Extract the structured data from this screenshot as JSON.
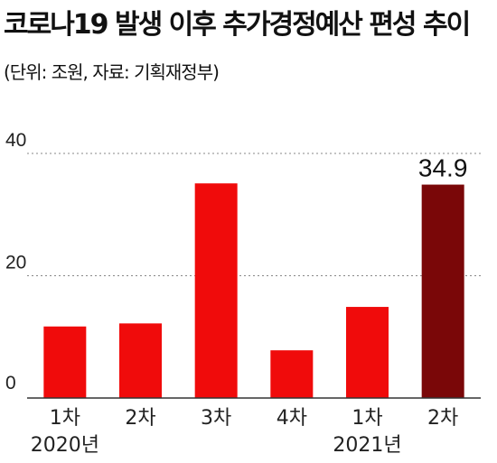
{
  "title": "코로나19 발생 이후 추가경정예산 편성 추이",
  "subtitle": "(단위: 조원, 자료: 기획재정부)",
  "chart_data": {
    "type": "bar",
    "categories": [
      "1차",
      "2차",
      "3차",
      "4차",
      "1차",
      "2차"
    ],
    "groups": [
      {
        "label": "2020년",
        "from": 0,
        "to": 3
      },
      {
        "label": "2021년",
        "from": 4,
        "to": 5
      }
    ],
    "values": [
      11.7,
      12.2,
      35.1,
      7.8,
      14.9,
      34.9
    ],
    "yticks": [
      0,
      20,
      40
    ],
    "ylim": [
      0,
      40
    ],
    "data_labels": [
      null,
      null,
      null,
      null,
      null,
      "34.9"
    ],
    "grid": "horizontal-dotted",
    "colors": {
      "bar": "#f00b0b",
      "highlight": "#7a0708",
      "grid": "#888888",
      "axis": "#333333"
    },
    "highlight_index": 5
  }
}
